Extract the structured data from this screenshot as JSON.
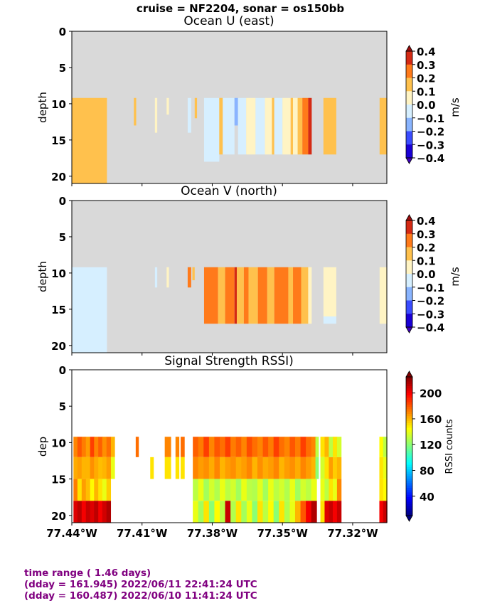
{
  "suptitle": "cruise = NF2204,  sonar = os150bb",
  "footer": {
    "line1": "time range ( 1.46 days)",
    "line2": "(dday = 161.945) 2022/06/11 22:41:24 UTC",
    "line3": "(dday = 160.487) 2022/06/10 11:41:24 UTC"
  },
  "colors": {
    "nodata": "#d9d9d9",
    "uv_levels": [
      "#1a00d6",
      "#3a4cff",
      "#89b4ff",
      "#d6efff",
      "#fff4c4",
      "#ffc14d",
      "#ff7a1a",
      "#d42a14"
    ],
    "uv_under": "#3f00c0",
    "uv_over": "#9a0d0d"
  },
  "chart_data": [
    {
      "type": "heatmap",
      "title": "Ocean U (east)",
      "xlabel": "",
      "ylabel": "depth",
      "xlim": [
        -77.44,
        -77.3054
      ],
      "ylim": [
        21,
        0
      ],
      "yticks": [
        0,
        5,
        10,
        15,
        20
      ],
      "xticks": [],
      "colorbar": {
        "label": "m/s",
        "ticks": [
          "0.4",
          "0.3",
          "0.2",
          "0.1",
          "0.0",
          "−0.1",
          "−0.2",
          "−0.3",
          "−0.4"
        ],
        "range": [
          -0.4,
          0.4
        ]
      },
      "data_depth_range": [
        9.2,
        21
      ],
      "cells": [
        {
          "x": [
            -77.44,
            -77.425
          ],
          "y": [
            9.2,
            21
          ],
          "v": 0.15
        },
        {
          "x": [
            -77.4135,
            -77.4125
          ],
          "y": [
            9.2,
            13
          ],
          "v": 0.15
        },
        {
          "x": [
            -77.4045,
            -77.4035
          ],
          "y": [
            9.2,
            14
          ],
          "v": 0.05
        },
        {
          "x": [
            -77.3995,
            -77.3985
          ],
          "y": [
            9.2,
            11.5
          ],
          "v": 0.05
        },
        {
          "x": [
            -77.3905,
            -77.389
          ],
          "y": [
            9.2,
            14
          ],
          "v": -0.05
        },
        {
          "x": [
            -77.3875,
            -77.3865
          ],
          "y": [
            9.2,
            12
          ],
          "v": 0.15
        },
        {
          "x": [
            -77.3835,
            -77.377
          ],
          "y": [
            9.2,
            18
          ],
          "v": -0.05
        },
        {
          "x": [
            -77.377,
            -77.3755
          ],
          "y": [
            9.2,
            17
          ],
          "v": 0.15
        },
        {
          "x": [
            -77.3755,
            -77.3705
          ],
          "y": [
            9.2,
            17
          ],
          "v": -0.05
        },
        {
          "x": [
            -77.3705,
            -77.369
          ],
          "y": [
            9.2,
            13
          ],
          "v": -0.15
        },
        {
          "x": [
            -77.369,
            -77.3655
          ],
          "y": [
            9.2,
            17
          ],
          "v": -0.05
        },
        {
          "x": [
            -77.3655,
            -77.3615
          ],
          "y": [
            9.2,
            17
          ],
          "v": 0.05
        },
        {
          "x": [
            -77.3615,
            -77.3575
          ],
          "y": [
            9.2,
            17
          ],
          "v": -0.05
        },
        {
          "x": [
            -77.3575,
            -77.3545
          ],
          "y": [
            9.2,
            17
          ],
          "v": 0.05
        },
        {
          "x": [
            -77.3545,
            -77.3535
          ],
          "y": [
            9.2,
            17
          ],
          "v": 0.15
        },
        {
          "x": [
            -77.3535,
            -77.35
          ],
          "y": [
            9.2,
            17
          ],
          "v": -0.05
        },
        {
          "x": [
            -77.35,
            -77.3465
          ],
          "y": [
            9.2,
            17
          ],
          "v": 0.05
        },
        {
          "x": [
            -77.3465,
            -77.3455
          ],
          "y": [
            9.2,
            17
          ],
          "v": 0.15
        },
        {
          "x": [
            -77.3455,
            -77.3435
          ],
          "y": [
            9.2,
            17
          ],
          "v": 0.05
        },
        {
          "x": [
            -77.3435,
            -77.3415
          ],
          "y": [
            9.2,
            17
          ],
          "v": 0.15
        },
        {
          "x": [
            -77.3415,
            -77.339
          ],
          "y": [
            9.2,
            17
          ],
          "v": 0.25
        },
        {
          "x": [
            -77.339,
            -77.3375
          ],
          "y": [
            9.2,
            17
          ],
          "v": 0.35
        },
        {
          "x": [
            -77.3325,
            -77.327
          ],
          "y": [
            9.2,
            17
          ],
          "v": 0.15
        },
        {
          "x": [
            -77.3085,
            -77.3054
          ],
          "y": [
            9.2,
            17
          ],
          "v": 0.15
        }
      ]
    },
    {
      "type": "heatmap",
      "title": "Ocean V (north)",
      "xlabel": "",
      "ylabel": "depth",
      "xlim": [
        -77.44,
        -77.3054
      ],
      "ylim": [
        21,
        0
      ],
      "yticks": [
        0,
        5,
        10,
        15,
        20
      ],
      "xticks": [],
      "colorbar": {
        "label": "m/s",
        "ticks": [
          "0.4",
          "0.3",
          "0.2",
          "0.1",
          "0.0",
          "−0.1",
          "−0.2",
          "−0.3",
          "−0.4"
        ],
        "range": [
          -0.4,
          0.4
        ]
      },
      "data_depth_range": [
        9.2,
        21
      ],
      "cells": [
        {
          "x": [
            -77.44,
            -77.425
          ],
          "y": [
            9.2,
            21
          ],
          "v": -0.05
        },
        {
          "x": [
            -77.4045,
            -77.4035
          ],
          "y": [
            9.2,
            12
          ],
          "v": -0.05
        },
        {
          "x": [
            -77.3995,
            -77.3985
          ],
          "y": [
            9.2,
            12
          ],
          "v": 0.05
        },
        {
          "x": [
            -77.3905,
            -77.389
          ],
          "y": [
            9.2,
            12
          ],
          "v": 0.25
        },
        {
          "x": [
            -77.3885,
            -77.3875
          ],
          "y": [
            9.2,
            11
          ],
          "v": 0.15
        },
        {
          "x": [
            -77.3835,
            -77.3775
          ],
          "y": [
            9.2,
            17
          ],
          "v": 0.25
        },
        {
          "x": [
            -77.3775,
            -77.3745
          ],
          "y": [
            9.2,
            17
          ],
          "v": 0.15
        },
        {
          "x": [
            -77.3745,
            -77.3705
          ],
          "y": [
            9.2,
            17
          ],
          "v": 0.25
        },
        {
          "x": [
            -77.3705,
            -77.3695
          ],
          "y": [
            9.2,
            17
          ],
          "v": 0.35
        },
        {
          "x": [
            -77.3695,
            -77.3665
          ],
          "y": [
            9.2,
            17
          ],
          "v": 0.15
        },
        {
          "x": [
            -77.3665,
            -77.3645
          ],
          "y": [
            9.2,
            17
          ],
          "v": 0.25
        },
        {
          "x": [
            -77.3645,
            -77.3605
          ],
          "y": [
            9.2,
            17
          ],
          "v": 0.15
        },
        {
          "x": [
            -77.3605,
            -77.3565
          ],
          "y": [
            9.2,
            17
          ],
          "v": 0.25
        },
        {
          "x": [
            -77.3565,
            -77.3535
          ],
          "y": [
            9.2,
            17
          ],
          "v": 0.15
        },
        {
          "x": [
            -77.3535,
            -77.3475
          ],
          "y": [
            9.2,
            17
          ],
          "v": 0.25
        },
        {
          "x": [
            -77.3475,
            -77.3455
          ],
          "y": [
            9.2,
            17
          ],
          "v": 0.15
        },
        {
          "x": [
            -77.3455,
            -77.342
          ],
          "y": [
            9.2,
            17
          ],
          "v": 0.25
        },
        {
          "x": [
            -77.342,
            -77.339
          ],
          "y": [
            9.2,
            17
          ],
          "v": 0.15
        },
        {
          "x": [
            -77.339,
            -77.3375
          ],
          "y": [
            9.2,
            17
          ],
          "v": 0.05
        },
        {
          "x": [
            -77.3325,
            -77.327
          ],
          "y": [
            9.2,
            16
          ],
          "v": 0.05
        },
        {
          "x": [
            -77.3325,
            -77.327
          ],
          "y": [
            16,
            17
          ],
          "v": -0.05
        },
        {
          "x": [
            -77.3085,
            -77.3054
          ],
          "y": [
            9.2,
            17
          ],
          "v": 0.05
        }
      ]
    },
    {
      "type": "heatmap",
      "title": "Signal Strength RSSI)",
      "xlabel": "",
      "ylabel": "dep",
      "xlim": [
        -77.44,
        -77.3054
      ],
      "ylim": [
        21,
        0
      ],
      "yticks": [
        0,
        5,
        10,
        15,
        20
      ],
      "xticks": [
        "77.44°W",
        "77.41°W",
        "77.38°W",
        "77.35°W",
        "77.32°W"
      ],
      "xtick_values": [
        -77.44,
        -77.41,
        -77.38,
        -77.35,
        -77.32
      ],
      "colorbar": {
        "label": "RSSI counts",
        "ticks": [
          "200",
          "160",
          "120",
          "80",
          "40"
        ],
        "range": [
          10,
          225
        ]
      },
      "depth_bins": [
        [
          9.2,
          12
        ],
        [
          12,
          15
        ],
        [
          15,
          18
        ],
        [
          18,
          21
        ]
      ],
      "columns": [
        {
          "x": -77.4393,
          "w": 0.0018,
          "v": [
            170,
            162,
            172,
            205
          ]
        },
        {
          "x": -77.4376,
          "w": 0.0018,
          "v": [
            180,
            165,
            150,
            212
          ]
        },
        {
          "x": -77.4358,
          "w": 0.0018,
          "v": [
            172,
            160,
            165,
            200
          ]
        },
        {
          "x": -77.434,
          "w": 0.0018,
          "v": [
            165,
            160,
            158,
            210
          ]
        },
        {
          "x": -77.4322,
          "w": 0.0018,
          "v": [
            185,
            168,
            145,
            205
          ]
        },
        {
          "x": -77.4305,
          "w": 0.0018,
          "v": [
            170,
            162,
            160,
            212
          ]
        },
        {
          "x": -77.4287,
          "w": 0.0018,
          "v": [
            178,
            158,
            150,
            200
          ]
        },
        {
          "x": -77.427,
          "w": 0.0018,
          "v": [
            168,
            160,
            140,
            208
          ]
        },
        {
          "x": -77.4252,
          "w": 0.0018,
          "v": [
            175,
            165,
            155,
            215
          ]
        },
        {
          "x": -77.4233,
          "w": 0.0016,
          "v": [
            160,
            140,
            null,
            null
          ]
        },
        {
          "x": -77.4127,
          "w": 0.0012,
          "v": [
            175,
            null,
            null,
            null
          ]
        },
        {
          "x": -77.4065,
          "w": 0.0014,
          "v": [
            null,
            150,
            null,
            null
          ]
        },
        {
          "x": -77.4003,
          "w": 0.0026,
          "v": [
            170,
            150,
            null,
            null
          ]
        },
        {
          "x": -77.3957,
          "w": 0.0015,
          "v": [
            170,
            150,
            null,
            null
          ]
        },
        {
          "x": -77.3935,
          "w": 0.0016,
          "v": [
            175,
            150,
            null,
            null
          ]
        },
        {
          "x": -77.3883,
          "w": 0.0023,
          "v": [
            178,
            170,
            130,
            140
          ]
        },
        {
          "x": -77.386,
          "w": 0.0023,
          "v": [
            172,
            165,
            140,
            125
          ]
        },
        {
          "x": -77.3837,
          "w": 0.0023,
          "v": [
            185,
            168,
            125,
            150
          ]
        },
        {
          "x": -77.3814,
          "w": 0.0023,
          "v": [
            170,
            162,
            135,
            120
          ]
        },
        {
          "x": -77.3791,
          "w": 0.0023,
          "v": [
            180,
            170,
            128,
            145
          ]
        },
        {
          "x": -77.3768,
          "w": 0.0023,
          "v": [
            175,
            160,
            140,
            130
          ]
        },
        {
          "x": -77.3745,
          "w": 0.0023,
          "v": [
            185,
            165,
            130,
            210
          ]
        },
        {
          "x": -77.3722,
          "w": 0.0023,
          "v": [
            172,
            168,
            135,
            128
          ]
        },
        {
          "x": -77.3699,
          "w": 0.0023,
          "v": [
            178,
            162,
            125,
            150
          ]
        },
        {
          "x": -77.3676,
          "w": 0.0023,
          "v": [
            170,
            165,
            140,
            125
          ]
        },
        {
          "x": -77.3653,
          "w": 0.0023,
          "v": [
            182,
            170,
            130,
            140
          ]
        },
        {
          "x": -77.363,
          "w": 0.0023,
          "v": [
            175,
            160,
            128,
            120
          ]
        },
        {
          "x": -77.3607,
          "w": 0.0023,
          "v": [
            170,
            168,
            138,
            150
          ]
        },
        {
          "x": -77.3584,
          "w": 0.0023,
          "v": [
            180,
            162,
            125,
            130
          ]
        },
        {
          "x": -77.3561,
          "w": 0.0023,
          "v": [
            172,
            165,
            140,
            145
          ]
        },
        {
          "x": -77.3538,
          "w": 0.0023,
          "v": [
            185,
            170,
            130,
            120
          ]
        },
        {
          "x": -77.3515,
          "w": 0.0023,
          "v": [
            175,
            160,
            135,
            150
          ]
        },
        {
          "x": -77.3492,
          "w": 0.0023,
          "v": [
            170,
            165,
            128,
            128
          ]
        },
        {
          "x": -77.3469,
          "w": 0.0023,
          "v": [
            180,
            168,
            140,
            140
          ]
        },
        {
          "x": -77.3446,
          "w": 0.0023,
          "v": [
            172,
            162,
            125,
            160
          ]
        },
        {
          "x": -77.3423,
          "w": 0.0023,
          "v": [
            185,
            170,
            135,
            180
          ]
        },
        {
          "x": -77.34,
          "w": 0.0023,
          "v": [
            175,
            165,
            130,
            200
          ]
        },
        {
          "x": -77.3377,
          "w": 0.0023,
          "v": [
            170,
            160,
            140,
            215
          ]
        },
        {
          "x": -77.3359,
          "w": 0.0013,
          "v": [
            130,
            120,
            null,
            null
          ]
        },
        {
          "x": -77.3338,
          "w": 0.0017,
          "v": [
            150,
            135,
            140,
            150
          ]
        },
        {
          "x": -77.332,
          "w": 0.0018,
          "v": [
            160,
            150,
            130,
            205
          ]
        },
        {
          "x": -77.3302,
          "w": 0.0018,
          "v": [
            130,
            165,
            150,
            210
          ]
        },
        {
          "x": -77.3285,
          "w": 0.0018,
          "v": [
            150,
            155,
            140,
            200
          ]
        },
        {
          "x": -77.3267,
          "w": 0.0018,
          "v": [
            135,
            160,
            170,
            210
          ]
        },
        {
          "x": -77.3086,
          "w": 0.0016,
          "v": [
            145,
            150,
            150,
            200
          ]
        },
        {
          "x": -77.307,
          "w": 0.0017,
          "v": [
            130,
            140,
            145,
            210
          ]
        }
      ]
    }
  ]
}
